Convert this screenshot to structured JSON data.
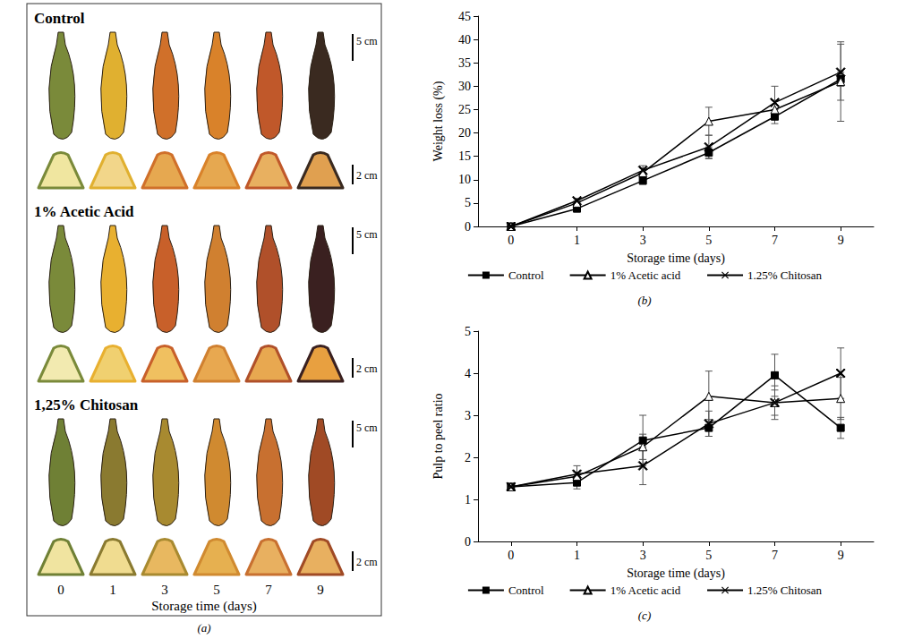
{
  "photo_panel": {
    "annotation": "(a)",
    "x_label": "Storage time (days)",
    "days": [
      "0",
      "1",
      "3",
      "5",
      "7",
      "9"
    ],
    "scale_bars": [
      "5 cm",
      "2 cm"
    ],
    "rows": [
      {
        "label": "Control",
        "colors": [
          "#7a8a3a",
          "#e0b030",
          "#d0702a",
          "#d9822a",
          "#c0582a",
          "#3a2a20"
        ],
        "pulp_colors": [
          "#f0e6a0",
          "#f2d68a",
          "#e6a850",
          "#e6a850",
          "#e8b060",
          "#e0a050"
        ]
      },
      {
        "label": "1% Acetic Acid",
        "colors": [
          "#7a8a3a",
          "#e8b030",
          "#c8602a",
          "#d08030",
          "#b0502a",
          "#3a2020"
        ],
        "pulp_colors": [
          "#f2eab0",
          "#f0d070",
          "#f0c060",
          "#e8a850",
          "#e8a850",
          "#e8a040"
        ]
      },
      {
        "label": "1,25% Chitosan",
        "colors": [
          "#6f8035",
          "#8a7a30",
          "#a88a30",
          "#d08a30",
          "#c87030",
          "#a04a25"
        ],
        "pulp_colors": [
          "#f0e4a0",
          "#f0dc90",
          "#e8b860",
          "#e6b050",
          "#e8b060",
          "#e8b060"
        ]
      }
    ]
  },
  "chart_data": [
    {
      "type": "line",
      "annotation": "(b)",
      "x_label": "Storage time (days)",
      "y_label": "Weight loss (%)",
      "categories": [
        "0",
        "1",
        "3",
        "5",
        "7",
        "9"
      ],
      "ylim": [
        0,
        45
      ],
      "yticks": [
        0,
        5,
        10,
        15,
        20,
        25,
        30,
        35,
        40,
        45
      ],
      "grid": false,
      "legend": "bottom",
      "series": [
        {
          "name": "Control",
          "color": "#000000",
          "marker": "square",
          "line_style": "solid",
          "values": [
            0,
            3.8,
            9.8,
            15.8,
            23.5,
            31.5
          ],
          "errors": [
            0,
            0.5,
            0.8,
            1.2,
            1.5,
            1.5
          ]
        },
        {
          "name": "1% Acetic acid",
          "color": "#000000",
          "marker": "triangle_open",
          "line_style": "solid",
          "values": [
            0,
            5,
            11.5,
            22.5,
            25,
            31
          ],
          "errors": [
            0,
            0.5,
            1,
            3,
            2,
            8.5
          ]
        },
        {
          "name": "1.25% Chitosan",
          "color": "#000000",
          "marker": "cross",
          "line_style": "solid",
          "values": [
            0,
            5.5,
            12,
            17,
            26.5,
            33
          ],
          "errors": [
            0,
            0.5,
            1,
            2.5,
            3.5,
            6
          ]
        }
      ]
    },
    {
      "type": "line",
      "annotation": "(c)",
      "x_label": "Storage time (days)",
      "y_label": "Pulp to peel ratio",
      "categories": [
        "0",
        "1",
        "3",
        "5",
        "7",
        "9"
      ],
      "ylim": [
        0,
        5
      ],
      "yticks": [
        0,
        1,
        2,
        3,
        4,
        5
      ],
      "grid": false,
      "legend": "bottom",
      "series": [
        {
          "name": "Control",
          "color": "#000000",
          "marker": "square",
          "line_style": "solid",
          "values": [
            1.3,
            1.4,
            2.4,
            2.7,
            3.95,
            2.7
          ],
          "errors": [
            0.05,
            0.15,
            0.6,
            0.2,
            0.5,
            0.25
          ]
        },
        {
          "name": "1% Acetic acid",
          "color": "#000000",
          "marker": "triangle_open",
          "line_style": "solid",
          "values": [
            1.3,
            1.55,
            2.25,
            3.45,
            3.3,
            3.4
          ],
          "errors": [
            0.05,
            0.1,
            0.3,
            0.6,
            0.3,
            0.5
          ]
        },
        {
          "name": "1.25% Chitosan",
          "color": "#000000",
          "marker": "cross",
          "line_style": "solid",
          "values": [
            1.3,
            1.6,
            1.8,
            2.8,
            3.3,
            4.0
          ],
          "errors": [
            0.05,
            0.2,
            0.45,
            0.3,
            0.4,
            0.6
          ]
        }
      ]
    }
  ]
}
